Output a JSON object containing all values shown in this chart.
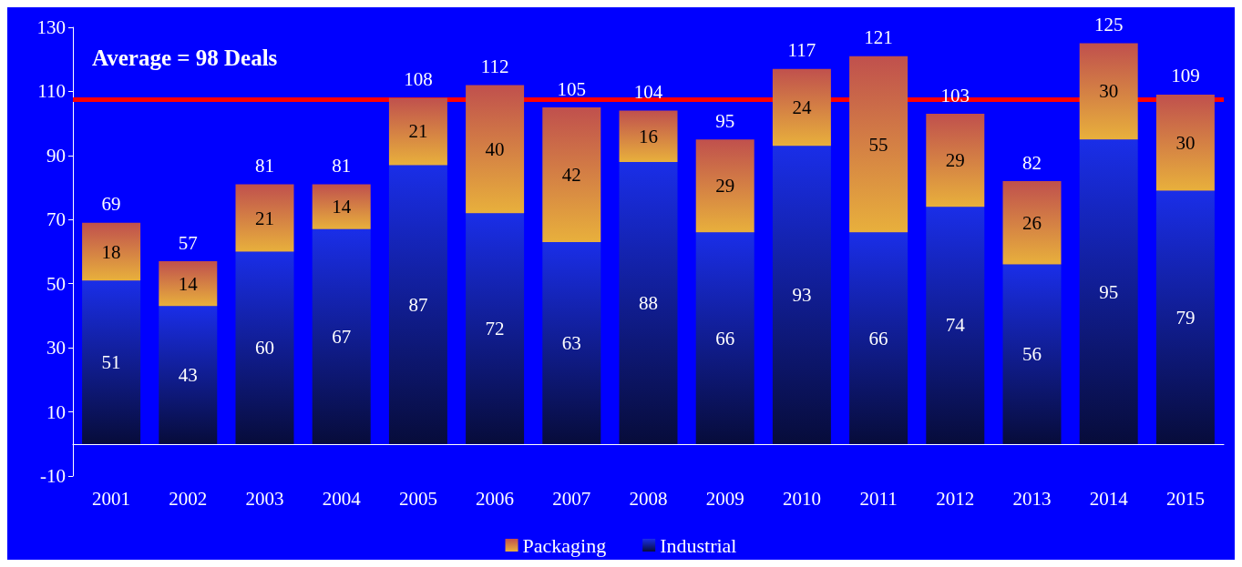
{
  "chart_data": {
    "type": "bar",
    "stacked": true,
    "categories": [
      "2001",
      "2002",
      "2003",
      "2004",
      "2005",
      "2006",
      "2007",
      "2008",
      "2009",
      "2010",
      "2011",
      "2012",
      "2013",
      "2014",
      "2015"
    ],
    "series": [
      {
        "name": "Industrial",
        "color": "#1a2ee8",
        "values": [
          51,
          43,
          60,
          67,
          87,
          72,
          63,
          88,
          66,
          93,
          66,
          74,
          56,
          95,
          79
        ],
        "value_labels": [
          "51",
          "43",
          "60",
          "67",
          "87",
          "72",
          "63",
          "88",
          "66",
          "93",
          "66",
          "74",
          "56",
          "95",
          "79"
        ]
      },
      {
        "name": "Packaging",
        "color": "#e8b03c",
        "values": [
          18,
          14,
          21,
          14,
          21,
          40,
          42,
          16,
          29,
          24,
          55,
          29,
          26,
          30,
          30
        ],
        "value_labels": [
          "18",
          "14",
          "21",
          "14",
          "21",
          "40",
          "42",
          "16",
          "29",
          "24",
          "55",
          "29",
          "26",
          "30",
          "30"
        ]
      }
    ],
    "totals": [
      "69",
      "57",
      "81",
      "81",
      "108",
      "112",
      "105",
      "104",
      "95",
      "117",
      "121",
      "103",
      "82",
      "125",
      "109"
    ],
    "ref_lines": [
      {
        "axis": "y",
        "value": 107.5,
        "color": "#ff0000"
      }
    ],
    "ylim": [
      -10,
      130
    ],
    "yticks": [
      -10,
      10,
      30,
      50,
      70,
      90,
      110,
      130
    ],
    "grid": false,
    "legend": "bottom",
    "annotations": [
      "Average = 98 Deals"
    ]
  }
}
